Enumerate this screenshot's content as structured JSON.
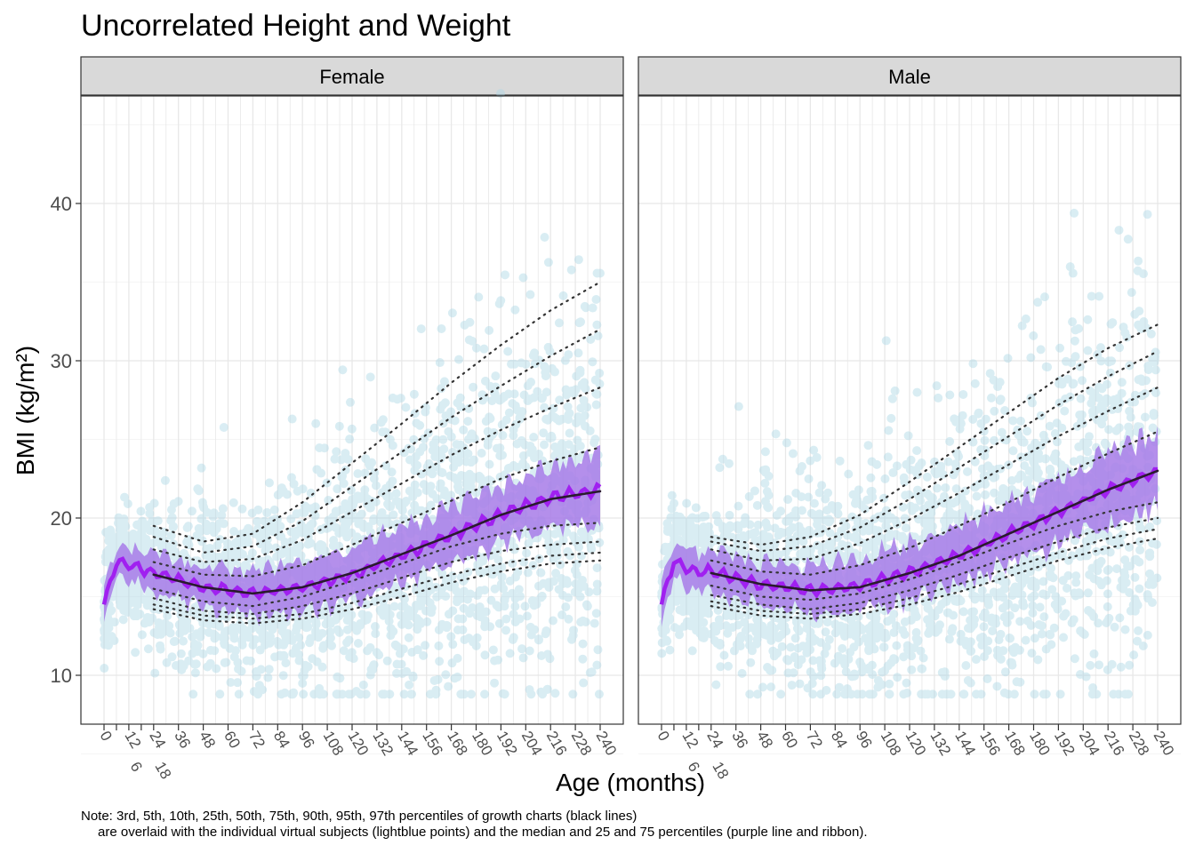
{
  "chart_data": {
    "type": "scatter",
    "title": "Uncorrelated Height and Weight",
    "xlabel": "Age (months)",
    "ylabel": "BMI (kg/m²)",
    "ylim": [
      7,
      47
    ],
    "xlim": [
      -11,
      251
    ],
    "y_ticks": [
      10,
      20,
      30,
      40
    ],
    "x_ticks": [
      0,
      6,
      12,
      18,
      24,
      36,
      48,
      60,
      72,
      84,
      96,
      108,
      120,
      132,
      144,
      156,
      168,
      180,
      192,
      204,
      216,
      228,
      240
    ],
    "grid": true,
    "note_lines": [
      "Note: 3rd, 5th, 10th, 25th, 50th, 75th, 90th, 95th, 97th percentiles of growth charts (black lines)",
      "are overlaid with the individual virtual subjects (lightblue points) and the median and 25 and 75 percentiles (purple line and ribbon)."
    ],
    "colors": {
      "points": "#add8e6",
      "ribbon": "#a77be8",
      "median": "#a020f0",
      "percentile_lines": "#333333",
      "strip": "#d9d9d9"
    },
    "percentile_ages": [
      24,
      48,
      72,
      96,
      120,
      144,
      168,
      192,
      216,
      240
    ],
    "panels": [
      {
        "name": "Female",
        "percentiles": {
          "3rd": [
            14.2,
            13.5,
            13.3,
            13.6,
            14.2,
            15.0,
            15.9,
            16.6,
            17.1,
            17.3
          ],
          "5th": [
            14.5,
            13.8,
            13.6,
            13.9,
            14.6,
            15.5,
            16.4,
            17.1,
            17.6,
            17.8
          ],
          "10th": [
            14.9,
            14.1,
            13.9,
            14.4,
            15.2,
            16.2,
            17.2,
            17.9,
            18.3,
            18.5
          ],
          "25th": [
            15.5,
            14.7,
            14.4,
            15.0,
            16.0,
            17.1,
            18.2,
            19.0,
            19.5,
            19.7
          ],
          "50th": [
            16.4,
            15.6,
            15.2,
            15.6,
            16.5,
            17.7,
            18.9,
            20.2,
            21.2,
            21.7
          ],
          "75th": [
            17.2,
            16.4,
            16.3,
            17.0,
            18.3,
            19.7,
            21.1,
            22.5,
            23.6,
            24.5
          ],
          "90th": [
            18.0,
            17.2,
            17.4,
            18.6,
            20.4,
            22.2,
            24.0,
            25.6,
            27.0,
            28.3
          ],
          "95th": [
            18.8,
            17.8,
            18.2,
            19.8,
            22.0,
            24.2,
            26.4,
            28.4,
            30.3,
            32.0
          ],
          "97th": [
            19.5,
            18.5,
            19.0,
            21.0,
            23.5,
            26.0,
            28.6,
            31.0,
            33.2,
            35.0
          ]
        },
        "sample_median": [
          [
            0,
            14.5
          ],
          [
            6,
            17.2
          ],
          [
            12,
            17.0
          ],
          [
            18,
            16.8
          ],
          [
            24,
            16.5
          ],
          [
            48,
            15.6
          ],
          [
            72,
            15.2
          ],
          [
            96,
            15.6
          ],
          [
            120,
            16.4
          ],
          [
            144,
            17.6
          ],
          [
            168,
            18.9
          ],
          [
            192,
            20.2
          ],
          [
            216,
            21.3
          ],
          [
            240,
            21.8
          ]
        ],
        "sample_iqr_halfwidth": 1.2
      },
      {
        "name": "Male",
        "percentiles": {
          "3rd": [
            14.4,
            13.8,
            13.6,
            13.9,
            14.5,
            15.3,
            16.3,
            17.3,
            18.1,
            18.7
          ],
          "5th": [
            14.7,
            14.1,
            13.9,
            14.2,
            14.9,
            15.8,
            16.8,
            17.8,
            18.7,
            19.3
          ],
          "10th": [
            15.1,
            14.5,
            14.2,
            14.6,
            15.4,
            16.4,
            17.5,
            18.5,
            19.4,
            20.0
          ],
          "25th": [
            15.7,
            15.0,
            14.8,
            15.2,
            16.1,
            17.2,
            18.4,
            19.5,
            20.4,
            21.0
          ],
          "50th": [
            16.5,
            15.8,
            15.4,
            15.6,
            16.5,
            17.6,
            19.0,
            20.4,
            21.8,
            23.0
          ],
          "75th": [
            17.3,
            16.6,
            16.4,
            17.0,
            18.1,
            19.5,
            21.0,
            22.6,
            24.1,
            25.5
          ],
          "90th": [
            18.0,
            17.3,
            17.4,
            18.4,
            19.9,
            21.6,
            23.4,
            25.2,
            26.8,
            28.3
          ],
          "95th": [
            18.5,
            17.9,
            18.2,
            19.4,
            21.2,
            23.2,
            25.2,
            27.2,
            29.0,
            30.6
          ],
          "97th": [
            18.8,
            18.3,
            18.8,
            20.2,
            22.3,
            24.5,
            26.7,
            28.9,
            30.8,
            32.3
          ]
        },
        "sample_median": [
          [
            0,
            14.5
          ],
          [
            6,
            17.3
          ],
          [
            12,
            16.8
          ],
          [
            18,
            16.5
          ],
          [
            24,
            16.6
          ],
          [
            48,
            15.8
          ],
          [
            72,
            15.4
          ],
          [
            96,
            15.7
          ],
          [
            120,
            16.5
          ],
          [
            144,
            17.6
          ],
          [
            168,
            19.0
          ],
          [
            192,
            20.4
          ],
          [
            216,
            21.8
          ],
          [
            240,
            23.0
          ]
        ],
        "sample_iqr_halfwidth": 1.3
      }
    ]
  }
}
